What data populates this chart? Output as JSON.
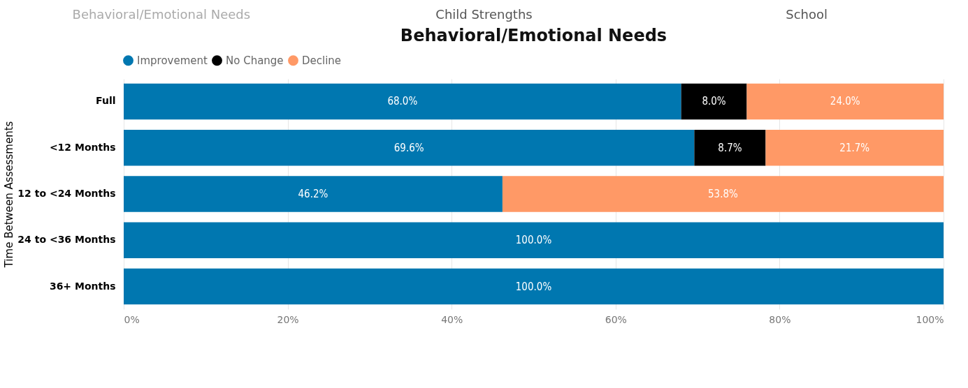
{
  "chart_data": {
    "type": "bar",
    "title": "Behavioral/Emotional Needs",
    "ylabel": "Time Between Assessments",
    "orientation": "horizontal",
    "stacked": true,
    "annotations": [
      "Behavioral/Emotional Needs",
      "Child Strengths",
      "School"
    ],
    "categories": [
      "Full",
      "<12 Months",
      "12 to <24 Months",
      "24 to <36 Months",
      "36+ Months"
    ],
    "series": [
      {
        "name": "Improvement",
        "color": "#0077b0",
        "values": [
          68.0,
          69.6,
          46.2,
          100.0,
          100.0
        ],
        "value_labels": [
          "68.0%",
          "69.6%",
          "46.2%",
          "100.0%",
          "100.0%"
        ]
      },
      {
        "name": "No Change",
        "color": "#000000",
        "values": [
          8.0,
          8.7,
          null,
          null,
          null
        ],
        "value_labels": [
          "8.0%",
          "8.7%",
          null,
          null,
          null
        ]
      },
      {
        "name": "Decline",
        "color": "#ff9966",
        "values": [
          24.0,
          21.7,
          53.8,
          null,
          null
        ],
        "value_labels": [
          "24.0%",
          "21.7%",
          "53.8%",
          null,
          null
        ]
      }
    ],
    "xlim": [
      0,
      100
    ],
    "xticks": [
      {
        "value": 0,
        "label": "0%"
      },
      {
        "value": 20,
        "label": "20%"
      },
      {
        "value": 40,
        "label": "40%"
      },
      {
        "value": 60,
        "label": "60%"
      },
      {
        "value": 80,
        "label": "80%"
      },
      {
        "value": 100,
        "label": "100%"
      }
    ],
    "grid": "x",
    "legend": "top left"
  }
}
